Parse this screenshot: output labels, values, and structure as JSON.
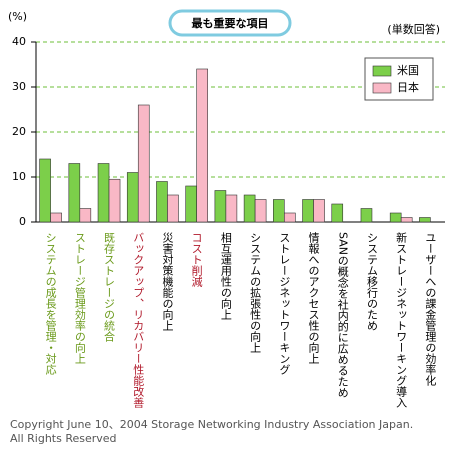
{
  "chart_data": {
    "type": "bar",
    "title": "最も重要な項目",
    "y_axis_label": "(%)",
    "note": "(単数回答)",
    "categories": [
      "システムの成長を管理・対応",
      "ストレージ管理効率の向上",
      "既存ストレージの統合",
      "バックアップ、リカバリー性能改善",
      "災害対策機能の向上",
      "コスト削減",
      "相互運用性の向上",
      "システムの拡張性の向上",
      "ストレージネットワーキング",
      "情報へのアクセス性の向上",
      "SANの概念を社内的に広めるため",
      "システム移行のため",
      "新ストレージネットワーキング導入",
      "ユーザーへの課金管理の効率化"
    ],
    "category_colors": [
      "#6a9a1a",
      "#6a9a1a",
      "#6a9a1a",
      "#b0182a",
      "#000000",
      "#b0182a",
      "#000000",
      "#000000",
      "#000000",
      "#000000",
      "#000000",
      "#000000",
      "#000000",
      "#000000"
    ],
    "series": [
      {
        "name": "米国",
        "color": "#7ccf4a",
        "values": [
          14,
          13,
          13,
          11,
          9,
          8,
          7,
          6,
          5,
          5,
          4,
          3,
          2,
          1
        ]
      },
      {
        "name": "日本",
        "color": "#f9b8c6",
        "values": [
          2,
          3,
          9.5,
          26,
          6,
          34,
          6,
          5,
          2,
          5,
          0,
          0,
          1,
          0
        ]
      }
    ],
    "ylim": [
      0,
      40
    ],
    "yticks": [
      0,
      10,
      20,
      30,
      40
    ],
    "grid": true,
    "legend": "top-right",
    "footer": [
      "Copyright June 10、2004 Storage Networking Industry Association Japan.",
      "All Rights Reserved"
    ]
  }
}
